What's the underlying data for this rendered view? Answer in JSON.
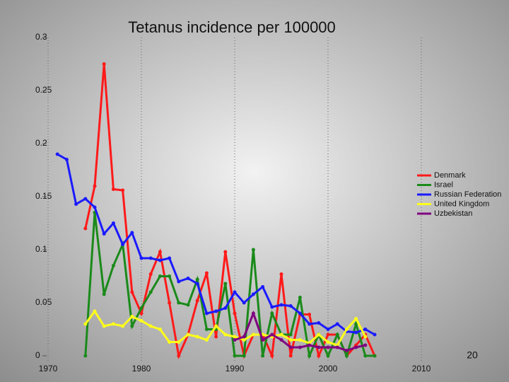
{
  "chart_data": {
    "type": "line",
    "title": "Tetanus incidence per 100000",
    "x": [
      1970,
      1971,
      1972,
      1973,
      1974,
      1975,
      1976,
      1977,
      1978,
      1979,
      1980,
      1981,
      1982,
      1983,
      1984,
      1985,
      1986,
      1987,
      1988,
      1989,
      1990,
      1991,
      1992,
      1993,
      1994,
      1995,
      1996,
      1997,
      1998,
      1999,
      2000,
      2001,
      2002,
      2003,
      2004,
      2005
    ],
    "xlim": [
      1970,
      2010
    ],
    "xticks": [
      1970,
      1980,
      1990,
      2000,
      2010
    ],
    "ylim": [
      0,
      0.3
    ],
    "yticks": [
      0,
      0.05,
      0.1,
      0.15,
      0.2,
      0.25,
      0.3
    ],
    "grid": true,
    "legend": "right",
    "series": [
      {
        "name": "Denmark",
        "color": "#ff1a1a",
        "values": [
          null,
          null,
          null,
          null,
          0.12,
          0.16,
          0.275,
          0.157,
          0.156,
          0.06,
          0.04,
          0.077,
          0.098,
          0.05,
          0,
          0.02,
          0.052,
          0.078,
          0.018,
          0.098,
          0.04,
          0,
          0.02,
          0.02,
          0,
          0.077,
          0,
          0.039,
          0.039,
          0,
          0.02,
          0.02,
          0,
          0.01,
          0.02,
          0
        ]
      },
      {
        "name": "Israel",
        "color": "#1a8a1a",
        "values": [
          null,
          null,
          null,
          null,
          0,
          0.135,
          0.058,
          0.085,
          0.105,
          0.028,
          0.045,
          0.06,
          0.075,
          0.075,
          0.05,
          0.048,
          0.072,
          0.025,
          0.025,
          0.068,
          0,
          0,
          0.1,
          0,
          0.04,
          0.02,
          0.02,
          0.055,
          0,
          0.02,
          0,
          0.02,
          0,
          0.03,
          0,
          0
        ]
      },
      {
        "name": "Russian Federation",
        "color": "#1a1aff",
        "values": [
          null,
          0.19,
          0.185,
          0.143,
          0.148,
          0.14,
          0.115,
          0.125,
          0.105,
          0.116,
          0.092,
          0.092,
          0.09,
          0.092,
          0.07,
          0.073,
          0.068,
          0.04,
          0.042,
          0.045,
          0.06,
          0.05,
          0.058,
          0.065,
          0.046,
          0.048,
          0.047,
          0.04,
          0.03,
          0.031,
          0.025,
          0.03,
          0.023,
          0.022,
          0.025,
          0.02
        ]
      },
      {
        "name": "United Kingdom",
        "color": "#ffff1a",
        "values": [
          null,
          null,
          null,
          null,
          0.03,
          0.042,
          0.028,
          0.03,
          0.028,
          0.037,
          0.033,
          0.028,
          0.025,
          0.013,
          0.013,
          0.02,
          0.018,
          0.015,
          0.028,
          0.02,
          0.018,
          0.015,
          0.02,
          0.02,
          0.018,
          0.02,
          0.015,
          0.015,
          0.012,
          0.02,
          0.013,
          0.01,
          0.025,
          0.035,
          0.018,
          null
        ]
      },
      {
        "name": "Uzbekistan",
        "color": "#800080",
        "values": [
          null,
          null,
          null,
          null,
          null,
          null,
          null,
          null,
          null,
          null,
          null,
          null,
          null,
          null,
          null,
          null,
          null,
          null,
          null,
          null,
          0.015,
          0.018,
          0.04,
          0.015,
          0.02,
          0.015,
          0.008,
          0.008,
          0.01,
          0.008,
          0.008,
          0.008,
          0.005,
          0.008,
          0.01,
          null
        ]
      }
    ]
  },
  "slide_number": "20"
}
